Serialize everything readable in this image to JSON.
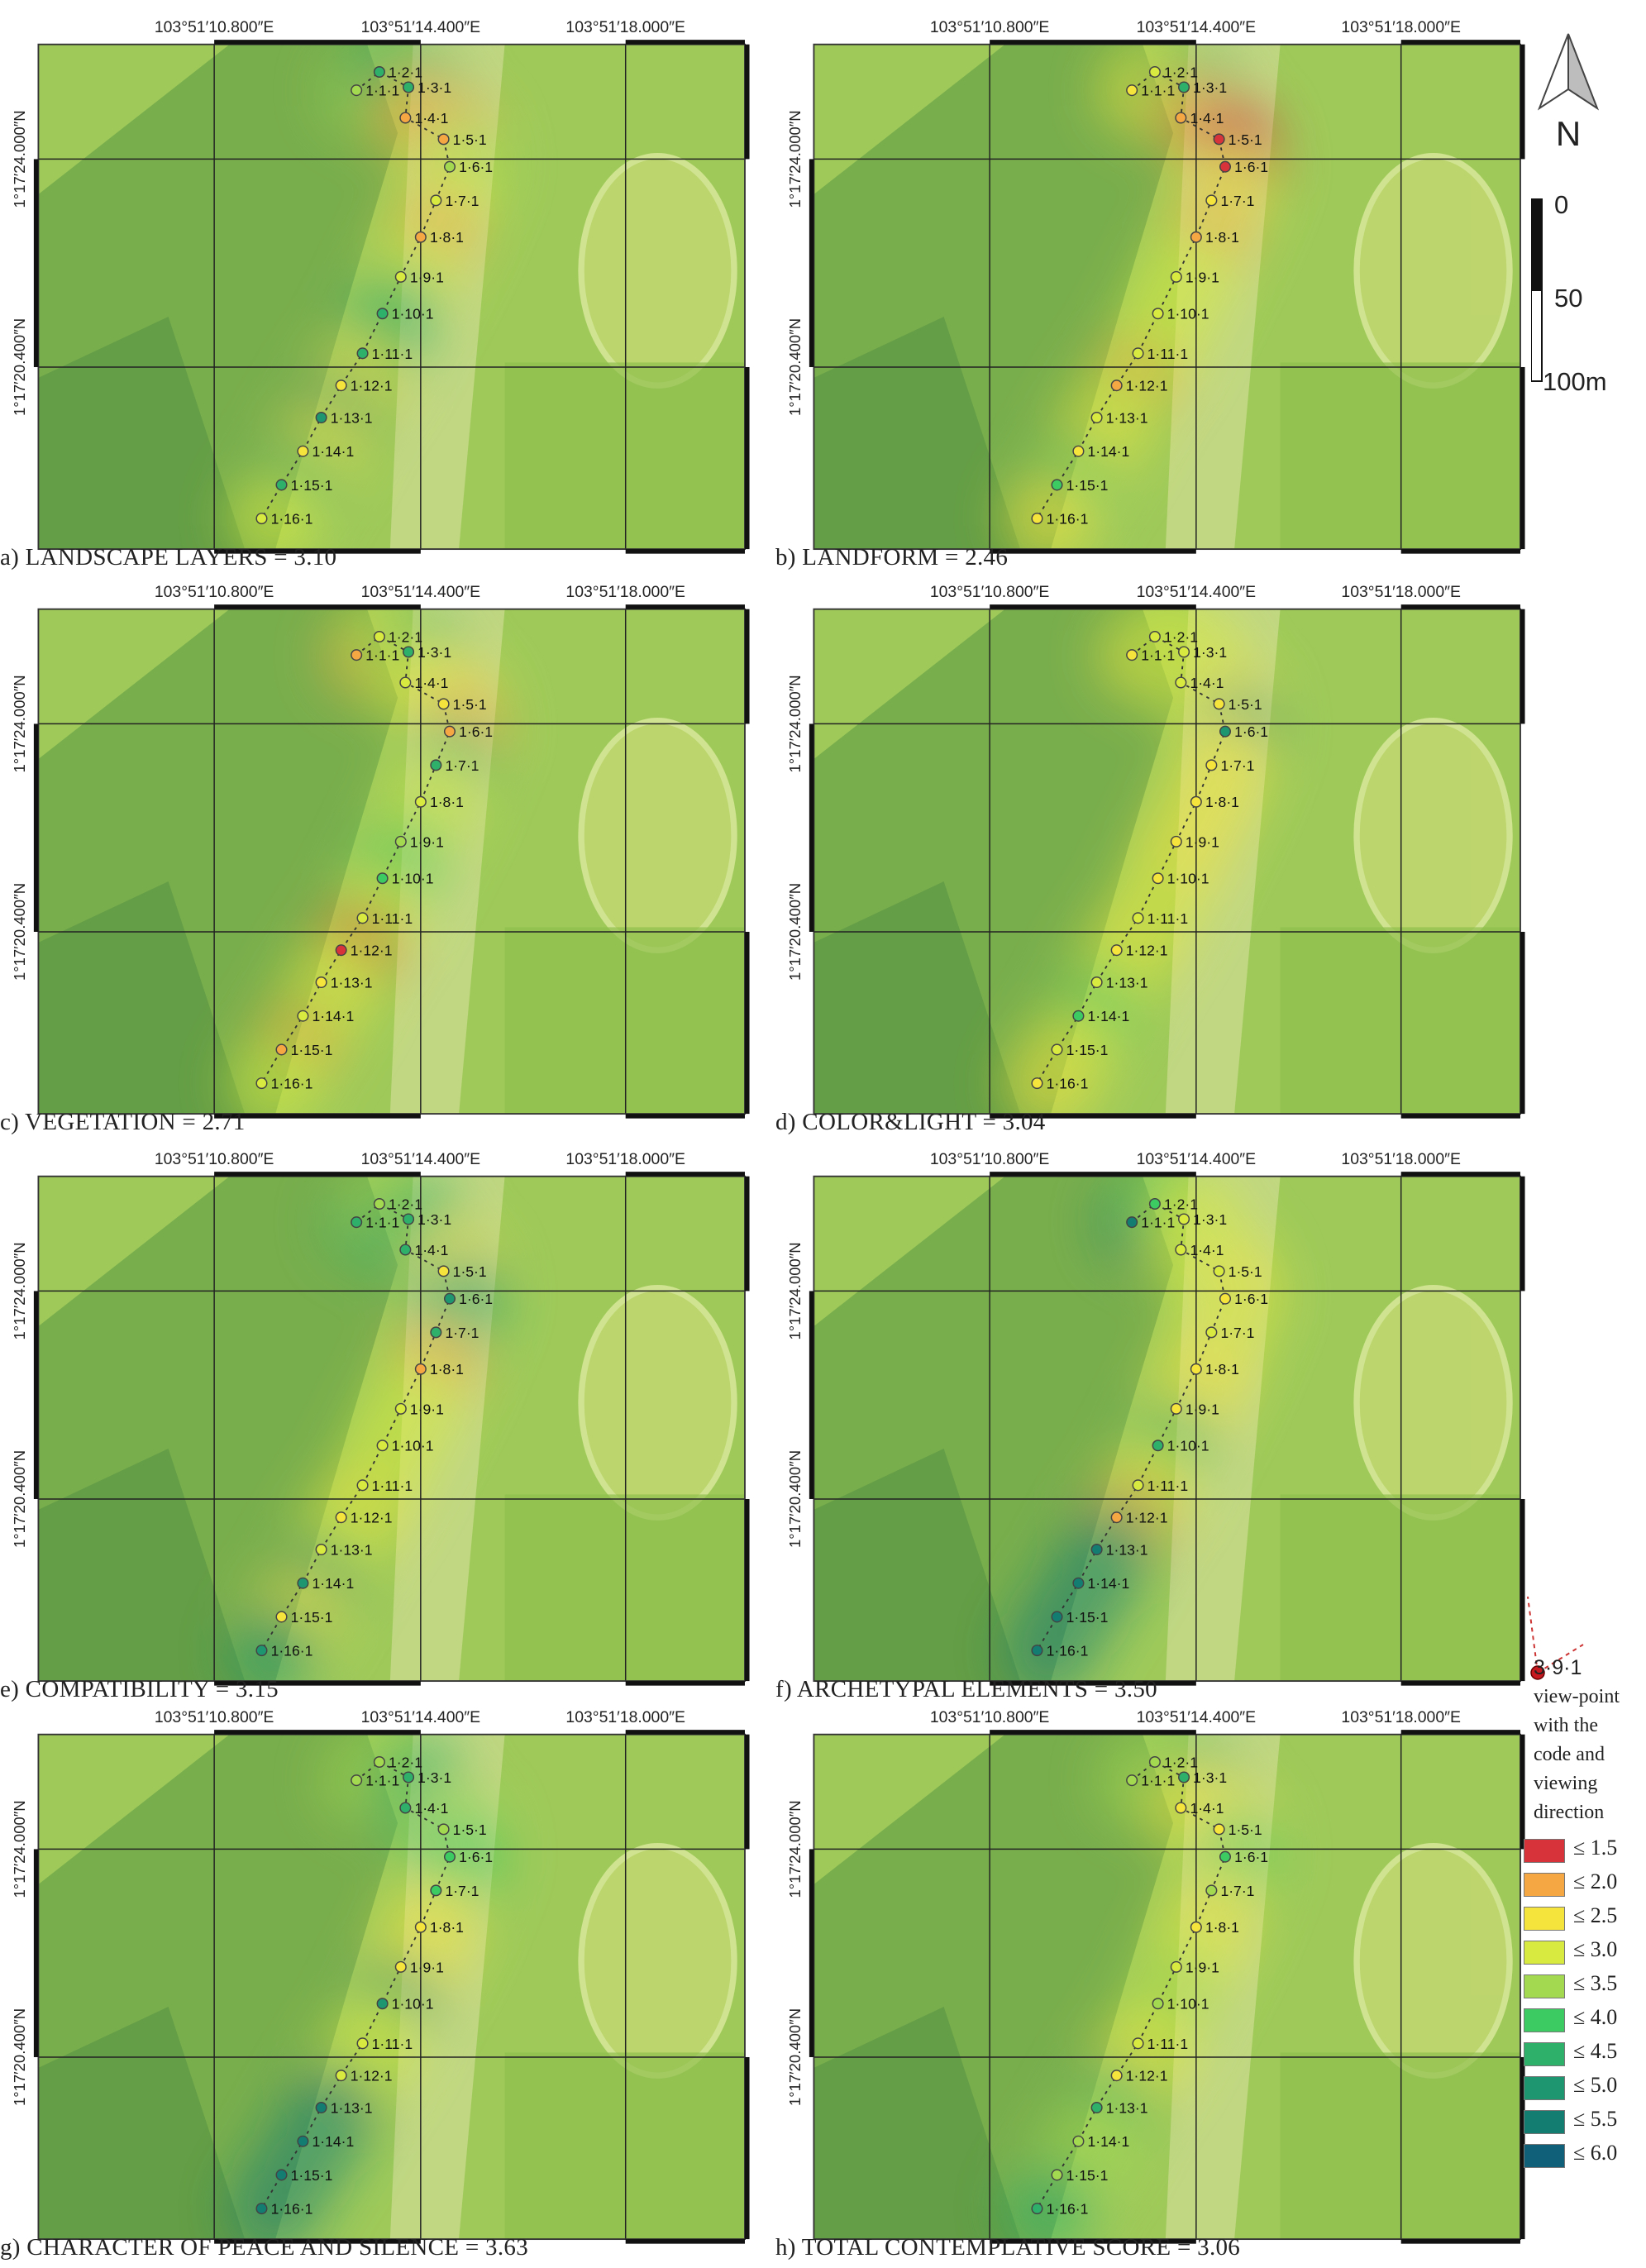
{
  "map_grid": {
    "longitude_labels": [
      "103°51′10.800″E",
      "103°51′14.400″E",
      "103°51′18.000″E"
    ],
    "latitude_labels": [
      "1°17′24.000″N",
      "1°17′20.400″N"
    ]
  },
  "viewpoint_codes": [
    "1·1·1",
    "1·2·1",
    "1·3·1",
    "1·4·1",
    "1·5·1",
    "1·6·1",
    "1·7·1",
    "1·8·1",
    "1·9·1",
    "1·10·1",
    "1·11·1",
    "1·12·1",
    "1·13·1",
    "1·14·1",
    "1·15·1",
    "1·16·1"
  ],
  "score_classes": [
    {
      "label": "≤ 1.5",
      "color": "#d7333a"
    },
    {
      "label": "≤ 2.0",
      "color": "#f4a742"
    },
    {
      "label": "≤ 2.5",
      "color": "#f4e43c"
    },
    {
      "label": "≤ 3.0",
      "color": "#d8ea3f"
    },
    {
      "label": "≤ 3.5",
      "color": "#a3d950"
    },
    {
      "label": "≤ 4.0",
      "color": "#3ccb62"
    },
    {
      "label": "≤ 4.5",
      "color": "#2fb06a"
    },
    {
      "label": "≤ 5.0",
      "color": "#1e9670"
    },
    {
      "label": "≤ 5.5",
      "color": "#137d72"
    },
    {
      "label": "≤ 6.0",
      "color": "#11607a"
    }
  ],
  "panels": [
    {
      "id": "a",
      "caption": "a)  LANDSCAPE LAYERS = 3.10",
      "viewpoint_classes": [
        4,
        6,
        6,
        1,
        1,
        4,
        3,
        1,
        3,
        6,
        6,
        2,
        7,
        2,
        6,
        3
      ]
    },
    {
      "id": "b",
      "caption": "b)  LANDFORM = 2.46",
      "viewpoint_classes": [
        2,
        3,
        6,
        1,
        0,
        0,
        2,
        1,
        3,
        3,
        3,
        1,
        3,
        2,
        5,
        2
      ]
    },
    {
      "id": "c",
      "caption": "c)  VEGETATION = 2.71",
      "viewpoint_classes": [
        1,
        3,
        6,
        3,
        2,
        1,
        6,
        3,
        4,
        5,
        3,
        0,
        2,
        3,
        1,
        3
      ]
    },
    {
      "id": "d",
      "caption": "d)  COLOR&LIGHT = 3.04",
      "viewpoint_classes": [
        2,
        3,
        3,
        3,
        2,
        7,
        2,
        2,
        2,
        2,
        3,
        2,
        3,
        5,
        3,
        2
      ]
    },
    {
      "id": "e",
      "caption": "e)  COMPATIBILITY = 3.15",
      "viewpoint_classes": [
        6,
        4,
        6,
        6,
        2,
        7,
        6,
        1,
        3,
        3,
        3,
        2,
        3,
        7,
        2,
        7
      ]
    },
    {
      "id": "f",
      "caption": "f)  ARCHETYPAL ELEMENTS = 3.50",
      "viewpoint_classes": [
        8,
        5,
        3,
        3,
        3,
        2,
        3,
        2,
        2,
        6,
        3,
        1,
        8,
        8,
        8,
        8
      ]
    },
    {
      "id": "g",
      "caption": "g)  CHARACTER OF PEACE AND SILENCE = 3.63",
      "viewpoint_classes": [
        4,
        4,
        6,
        6,
        4,
        5,
        5,
        2,
        2,
        7,
        3,
        3,
        8,
        8,
        8,
        8
      ]
    },
    {
      "id": "h",
      "caption": "h)  TOTAL CONTEMPLATIVE SCORE = 3.06",
      "viewpoint_classes": [
        4,
        4,
        6,
        2,
        2,
        5,
        4,
        2,
        3,
        4,
        3,
        2,
        6,
        4,
        4,
        6
      ]
    }
  ],
  "north_arrow": {
    "label": "N"
  },
  "scale_bar": {
    "labels": [
      "0",
      "50",
      "100m"
    ]
  },
  "viewpoint_legend": {
    "example_code": "3·9·1",
    "description": [
      "view-point",
      "with the",
      "code and",
      "viewing",
      "direction"
    ]
  }
}
